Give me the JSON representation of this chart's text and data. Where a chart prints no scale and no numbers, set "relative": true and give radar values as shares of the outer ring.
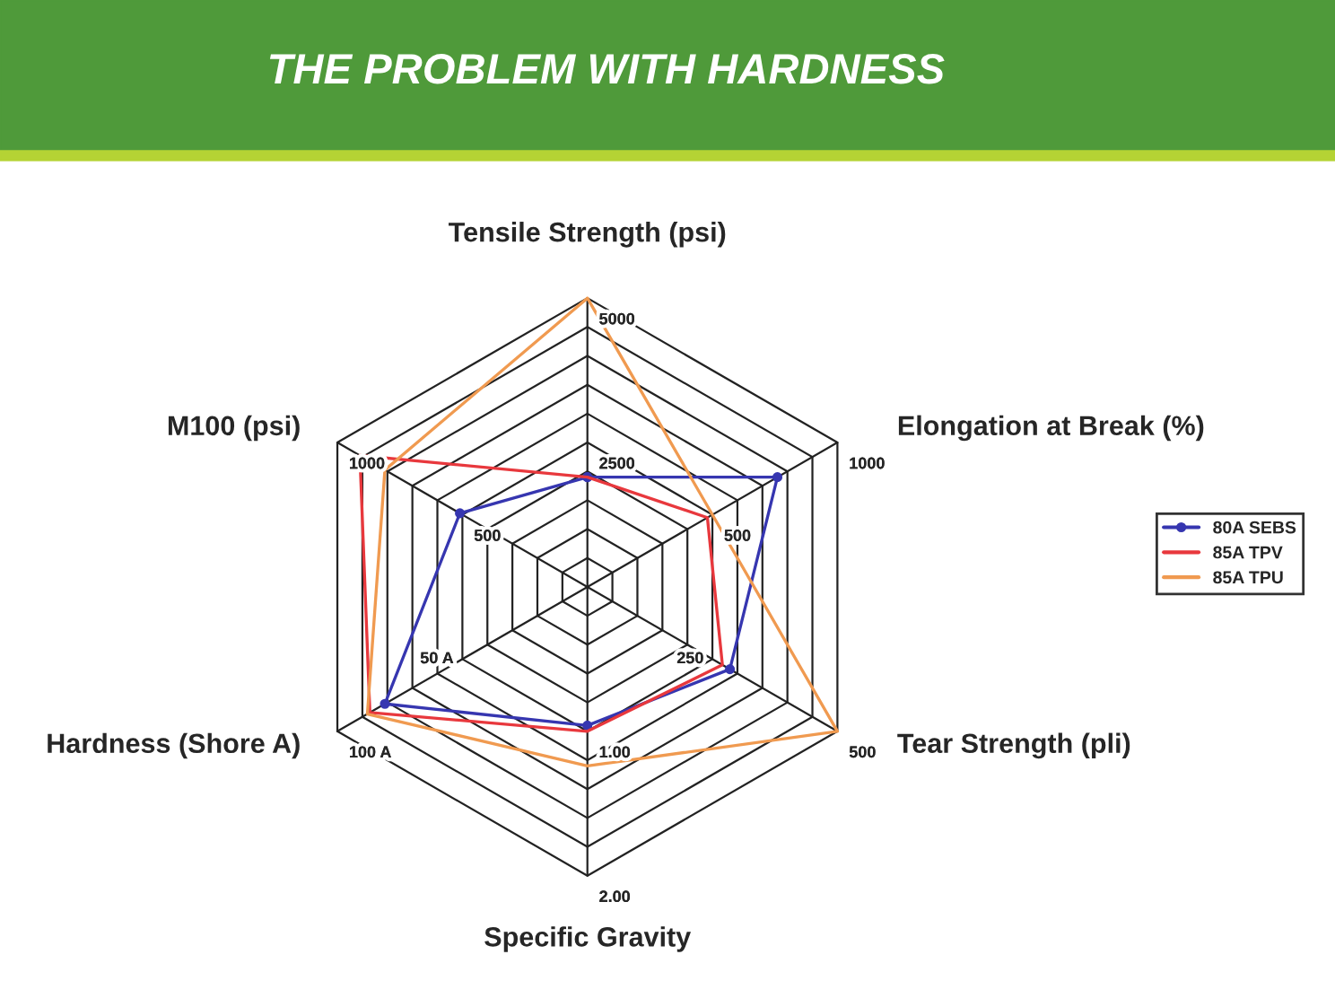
{
  "chart_data": {
    "type": "radar",
    "title": "THE PROBLEM WITH HARDNESS",
    "relative": true,
    "categories": [
      "Tensile Strength (psi)",
      "Elongation at Break (%)",
      "Tear Strength (pli)",
      "Specific Gravity",
      "Hardness (Shore A)",
      "M100 (psi)"
    ],
    "series": [
      {
        "name": "80A SEBS",
        "color": "#3636b0",
        "marker": "circle",
        "values": [
          0.38,
          0.76,
          0.57,
          0.48,
          0.81,
          0.51
        ]
      },
      {
        "name": "85A TPV",
        "color": "#e8383d",
        "marker": "none",
        "values": [
          0.38,
          0.48,
          0.54,
          0.5,
          0.87,
          0.91
        ]
      },
      {
        "name": "85A TPU",
        "color": "#f09a50",
        "marker": "none",
        "values": [
          1.0,
          0.5,
          1.0,
          0.62,
          0.88,
          0.81
        ]
      }
    ],
    "annotations": [
      "5000",
      "2500",
      "1000",
      "500",
      "500",
      "250",
      "2.00",
      "1.00",
      "100 A",
      "50 A",
      "1000",
      "500"
    ],
    "grid": true,
    "legend": "right"
  }
}
